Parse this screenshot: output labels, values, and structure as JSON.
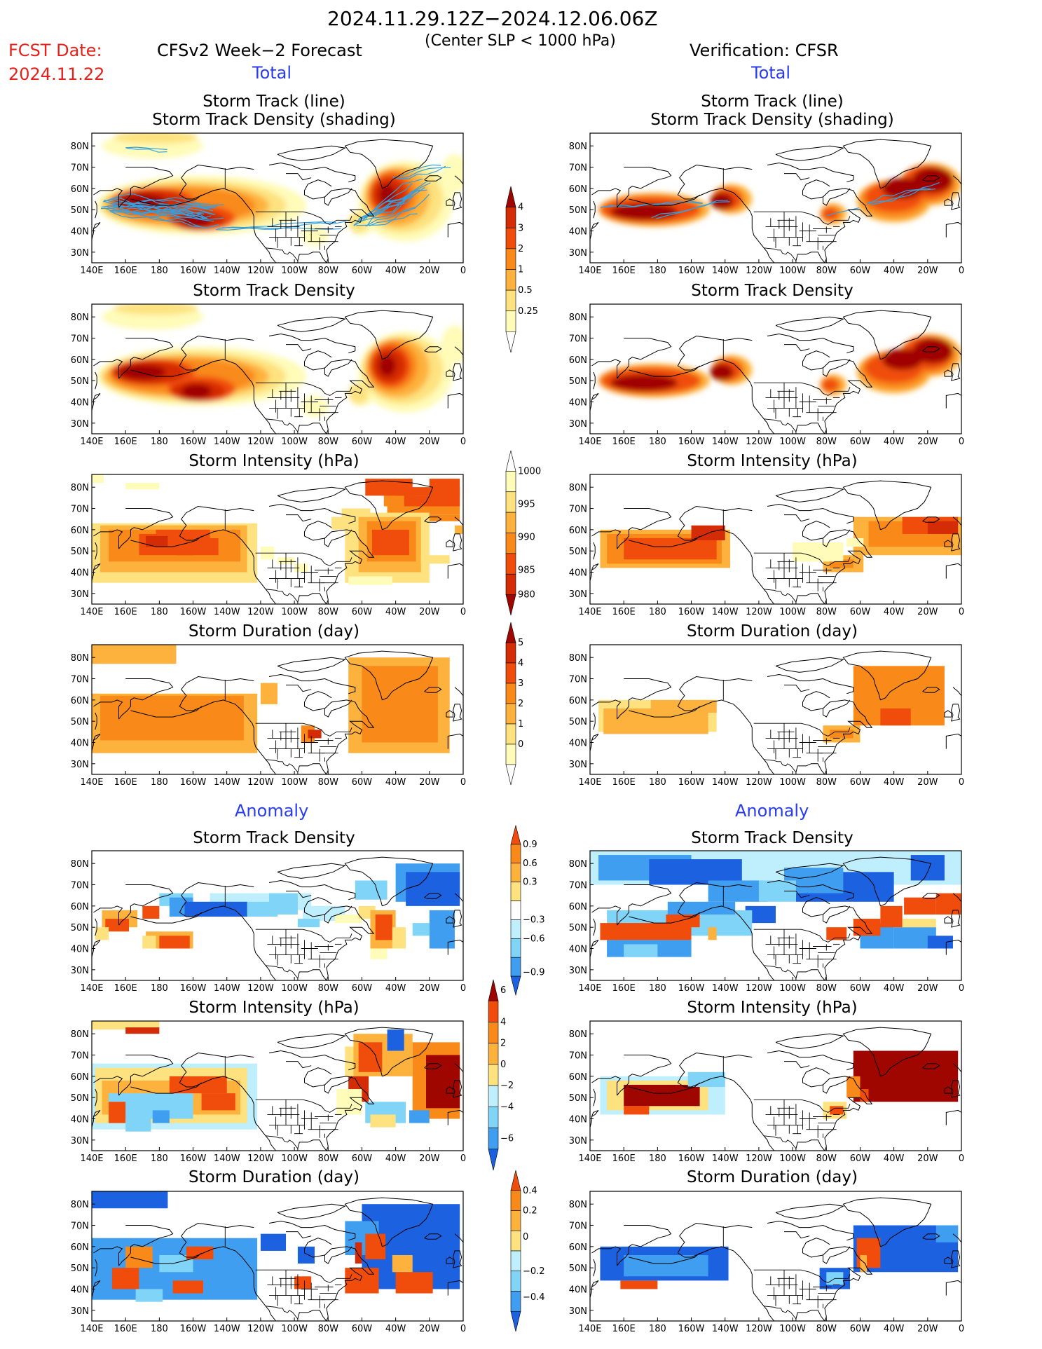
{
  "header": {
    "period": "2024.11.29.12Z−2024.12.06.06Z",
    "criterion": "(Center SLP < 1000 hPa)",
    "fcst_label": "FCST Date:",
    "fcst_date": "2024.11.22",
    "left_title": "CFSv2 Week−2 Forecast",
    "right_title": "Verification: CFSR",
    "total_label": "Total",
    "anomaly_label": "Anomaly"
  },
  "panel_titles": {
    "track": [
      "Storm Track (line)",
      "Storm Track Density (shading)"
    ],
    "density": "Storm Track Density",
    "intensity": "Storm Intensity (hPa)",
    "duration": "Storm Duration (day)"
  },
  "axes": {
    "lon_labels": [
      "140E",
      "160E",
      "180",
      "160W",
      "140W",
      "120W",
      "100W",
      "80W",
      "60W",
      "40W",
      "20W",
      "0"
    ],
    "lat_labels": [
      "80N",
      "70N",
      "60N",
      "50N",
      "40N",
      "30N"
    ]
  },
  "colorbars": {
    "total_density": [
      "4",
      "3",
      "2",
      "1",
      "0.5",
      "0.25"
    ],
    "total_intensity": [
      "1000",
      "995",
      "990",
      "985",
      "980"
    ],
    "total_duration": [
      "5",
      "4",
      "3",
      "2",
      "1",
      "0"
    ],
    "anom_density": [
      "0.9",
      "0.6",
      "0.3",
      "−0.3",
      "−0.6",
      "−0.9"
    ],
    "anom_intensity": [
      "6",
      "4",
      "2",
      "0",
      "−2",
      "−4",
      "−6"
    ],
    "anom_duration": [
      "0.4",
      "0.2",
      "0",
      "−0.2",
      "−0.4"
    ]
  },
  "colors": {
    "warm": [
      "#fffbb8",
      "#fde27f",
      "#fdb23e",
      "#f98a1a",
      "#f04d0c",
      "#d42c06",
      "#a00600"
    ],
    "cool": [
      "#bfeffc",
      "#80d4f8",
      "#3f9ef0",
      "#1c62e0"
    ],
    "track_line": "#34a0e0"
  }
}
